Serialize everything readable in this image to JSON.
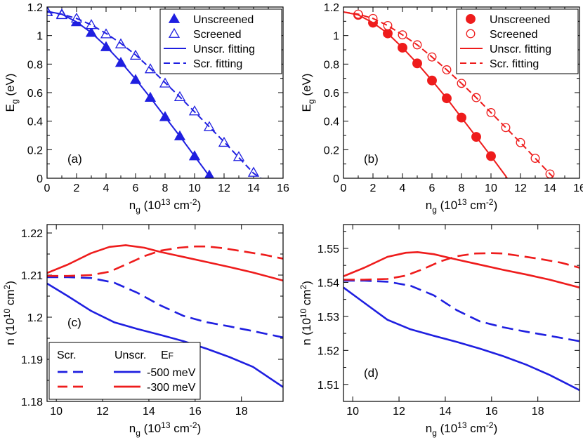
{
  "chart_data": [
    {
      "id": "a",
      "type": "scatter",
      "panel_label": "(a)",
      "xlabel": "n_g (10^13 cm^-2)",
      "ylabel": "E_g (eV)",
      "xlim": [
        0,
        16
      ],
      "ylim": [
        0,
        1.2
      ],
      "xticks": [
        0,
        2,
        4,
        6,
        8,
        10,
        12,
        14,
        16
      ],
      "yticks": [
        0,
        0.2,
        0.4,
        0.6,
        0.8,
        1,
        1.2
      ],
      "ytick_labels": [
        "0",
        "0.2",
        "0.4",
        "0.6",
        "0.8",
        "1",
        "1.2"
      ],
      "color": "#1f1fe0",
      "legend_position": "top-right",
      "series": [
        {
          "name": "Unscreened",
          "kind": "marker",
          "marker": "triangle-filled",
          "x": [
            0,
            1,
            2,
            3,
            4,
            5,
            6,
            7,
            8,
            9,
            10,
            11
          ],
          "y": [
            1.17,
            1.15,
            1.095,
            1.02,
            0.92,
            0.81,
            0.69,
            0.565,
            0.43,
            0.295,
            0.155,
            0.02
          ]
        },
        {
          "name": "Screened",
          "kind": "marker",
          "marker": "triangle-open",
          "x": [
            0,
            1,
            2,
            3,
            4,
            5,
            6,
            7,
            8,
            9,
            10,
            11,
            12,
            13,
            14
          ],
          "y": [
            1.165,
            1.145,
            1.12,
            1.075,
            1.01,
            0.94,
            0.86,
            0.765,
            0.665,
            0.57,
            0.47,
            0.36,
            0.25,
            0.15,
            0.04
          ]
        },
        {
          "name": "Unscr. fitting",
          "kind": "line",
          "dash": "solid",
          "x": [
            0,
            1,
            2,
            3,
            4,
            5,
            6,
            7,
            8,
            9,
            10,
            11,
            11.1
          ],
          "y": [
            1.17,
            1.15,
            1.095,
            1.02,
            0.925,
            0.815,
            0.695,
            0.565,
            0.43,
            0.295,
            0.155,
            0.015,
            0
          ]
        },
        {
          "name": "Scr. fitting",
          "kind": "line",
          "dash": "dashed",
          "x": [
            0,
            1,
            2,
            3,
            4,
            5,
            6,
            7,
            8,
            9,
            10,
            11,
            12,
            13,
            14,
            14.5
          ],
          "y": [
            1.165,
            1.15,
            1.12,
            1.075,
            1.015,
            0.945,
            0.865,
            0.77,
            0.67,
            0.57,
            0.465,
            0.36,
            0.255,
            0.145,
            0.035,
            0
          ]
        }
      ]
    },
    {
      "id": "b",
      "type": "scatter",
      "panel_label": "(b)",
      "xlabel": "n_g (10^13 cm^-2)",
      "ylabel": "E_g (eV)",
      "xlim": [
        0,
        16
      ],
      "ylim": [
        0,
        1.2
      ],
      "xticks": [
        0,
        2,
        4,
        6,
        8,
        10,
        12,
        14,
        16
      ],
      "yticks": [
        0,
        0.2,
        0.4,
        0.6,
        0.8,
        1,
        1.2
      ],
      "ytick_labels": [
        "0",
        "0.2",
        "0.4",
        "0.6",
        "0.8",
        "1",
        "1.2"
      ],
      "color": "#ee1c1c",
      "legend_position": "top-right",
      "series": [
        {
          "name": "Unscreened",
          "kind": "marker",
          "marker": "circle-filled",
          "x": [
            1,
            2,
            3,
            4,
            5,
            6,
            7,
            8,
            9,
            10
          ],
          "y": [
            1.145,
            1.09,
            1.015,
            0.915,
            0.805,
            0.685,
            0.56,
            0.425,
            0.29,
            0.155
          ]
        },
        {
          "name": "Screened",
          "kind": "marker",
          "marker": "circle-open",
          "x": [
            1,
            2,
            3,
            4,
            5,
            6,
            7,
            8,
            9,
            10,
            11,
            12,
            13,
            14
          ],
          "y": [
            1.15,
            1.12,
            1.07,
            1.005,
            0.935,
            0.85,
            0.76,
            0.665,
            0.565,
            0.46,
            0.355,
            0.25,
            0.14,
            0.03
          ]
        },
        {
          "name": "Unscr. fitting",
          "kind": "line",
          "dash": "solid",
          "x": [
            0,
            1,
            2,
            3,
            4,
            5,
            6,
            7,
            8,
            9,
            10,
            11,
            11.1
          ],
          "y": [
            1.165,
            1.145,
            1.09,
            1.015,
            0.915,
            0.805,
            0.685,
            0.56,
            0.425,
            0.29,
            0.155,
            0.015,
            0
          ]
        },
        {
          "name": "Scr. fitting",
          "kind": "line",
          "dash": "dashed",
          "x": [
            0,
            1,
            2,
            3,
            4,
            5,
            6,
            7,
            8,
            9,
            10,
            11,
            12,
            13,
            14,
            14.3
          ],
          "y": [
            1.165,
            1.15,
            1.12,
            1.07,
            1.005,
            0.935,
            0.85,
            0.76,
            0.665,
            0.565,
            0.46,
            0.355,
            0.25,
            0.14,
            0.03,
            0
          ]
        }
      ]
    },
    {
      "id": "c",
      "type": "line",
      "panel_label": "(c)",
      "xlabel": "n_g (10^13 cm^-2)",
      "ylabel": "n (10^10 cm^-2)",
      "xlim": [
        9.6,
        19.8
      ],
      "ylim": [
        1.18,
        1.222
      ],
      "xticks": [
        10,
        12,
        14,
        16,
        18
      ],
      "yticks": [
        1.18,
        1.19,
        1.2,
        1.21,
        1.22
      ],
      "ytick_labels": [
        "1.18",
        "1.19",
        "1.2",
        "1.21",
        "1.22"
      ],
      "legend_position": "bottom-left",
      "legend": {
        "col_screened": "Scr.",
        "col_unscreened": "Unscr.",
        "col_ef_symbol": "E",
        "col_ef_sub": "F",
        "rows": [
          "-500 meV",
          "-300 meV"
        ]
      },
      "series": [
        {
          "name": "Unscr. -500 meV",
          "color": "#1f1fe0",
          "dash": "solid",
          "x": [
            9.6,
            10.5,
            11.5,
            12.5,
            13.5,
            14.5,
            15.5,
            16.5,
            17.5,
            18.5,
            19.8
          ],
          "y": [
            1.208,
            1.205,
            1.2015,
            1.1988,
            1.1972,
            1.1958,
            1.1943,
            1.1925,
            1.1905,
            1.1882,
            1.1834
          ]
        },
        {
          "name": "Scr. -500 meV",
          "color": "#1f1fe0",
          "dash": "dashed",
          "x": [
            9.6,
            10.5,
            11.5,
            12.5,
            13.5,
            14.5,
            15.5,
            16.5,
            17.5,
            18.5,
            19.8
          ],
          "y": [
            1.2095,
            1.2095,
            1.2093,
            1.2082,
            1.2058,
            1.2028,
            1.2003,
            1.1988,
            1.1978,
            1.1967,
            1.1952
          ]
        },
        {
          "name": "Unscr. -300 meV",
          "color": "#ee1c1c",
          "dash": "solid",
          "x": [
            9.6,
            10.5,
            11.5,
            12.3,
            13.0,
            13.8,
            14.5,
            15.5,
            16.5,
            17.5,
            18.5,
            19.8
          ],
          "y": [
            1.2105,
            1.2125,
            1.2152,
            1.2167,
            1.2171,
            1.2165,
            1.2155,
            1.2143,
            1.2131,
            1.2119,
            1.2106,
            1.2087
          ]
        },
        {
          "name": "Scr. -300 meV",
          "color": "#ee1c1c",
          "dash": "dashed",
          "x": [
            9.6,
            10.5,
            11.5,
            12.3,
            13.0,
            13.8,
            14.5,
            15.3,
            16.0,
            16.5,
            17.2,
            18.0,
            19.0,
            19.8
          ],
          "y": [
            1.2098,
            1.2098,
            1.21,
            1.2108,
            1.2125,
            1.2145,
            1.2158,
            1.2165,
            1.2168,
            1.2168,
            1.2164,
            1.2157,
            1.2148,
            1.2139
          ]
        }
      ]
    },
    {
      "id": "d",
      "type": "line",
      "panel_label": "(d)",
      "xlabel": "n_g (10^13 cm^-2)",
      "ylabel": "n (10^10 cm^-2)",
      "xlim": [
        9.6,
        19.8
      ],
      "ylim": [
        1.505,
        1.557
      ],
      "xticks": [
        10,
        12,
        14,
        16,
        18
      ],
      "yticks": [
        1.51,
        1.52,
        1.53,
        1.54,
        1.55
      ],
      "ytick_labels": [
        "1.51",
        "1.52",
        "1.53",
        "1.54",
        "1.55"
      ],
      "series": [
        {
          "name": "Unscr. -500 meV",
          "color": "#1f1fe0",
          "dash": "solid",
          "x": [
            9.6,
            10.5,
            11.5,
            12.5,
            13.5,
            14.5,
            15.5,
            16.5,
            17.5,
            18.5,
            19.8
          ],
          "y": [
            1.5385,
            1.534,
            1.529,
            1.5262,
            1.5243,
            1.5225,
            1.5205,
            1.5183,
            1.5158,
            1.5128,
            1.5083
          ]
        },
        {
          "name": "Scr. -500 meV",
          "color": "#1f1fe0",
          "dash": "dashed",
          "x": [
            9.6,
            10.5,
            11.5,
            12.5,
            13.5,
            14.5,
            15.5,
            16.5,
            17.5,
            18.5,
            19.8
          ],
          "y": [
            1.5405,
            1.5405,
            1.5402,
            1.539,
            1.5362,
            1.5318,
            1.5285,
            1.5268,
            1.5255,
            1.5243,
            1.5227
          ]
        },
        {
          "name": "Unscr. -300 meV",
          "color": "#ee1c1c",
          "dash": "solid",
          "x": [
            9.6,
            10.5,
            11.5,
            12.3,
            12.8,
            13.5,
            14.5,
            15.5,
            16.5,
            17.5,
            18.5,
            19.8
          ],
          "y": [
            1.5418,
            1.5443,
            1.5475,
            1.5487,
            1.5489,
            1.5483,
            1.5467,
            1.5452,
            1.5437,
            1.5423,
            1.5408,
            1.5385
          ]
        },
        {
          "name": "Scr. -300 meV",
          "color": "#ee1c1c",
          "dash": "dashed",
          "x": [
            9.6,
            10.5,
            11.5,
            12.3,
            13.0,
            13.8,
            14.5,
            15.3,
            16.0,
            16.5,
            17.2,
            18.0,
            19.0,
            19.8
          ],
          "y": [
            1.5408,
            1.5408,
            1.541,
            1.542,
            1.5438,
            1.5462,
            1.5477,
            1.5485,
            1.5486,
            1.5485,
            1.5478,
            1.547,
            1.5458,
            1.5443
          ]
        }
      ]
    }
  ]
}
